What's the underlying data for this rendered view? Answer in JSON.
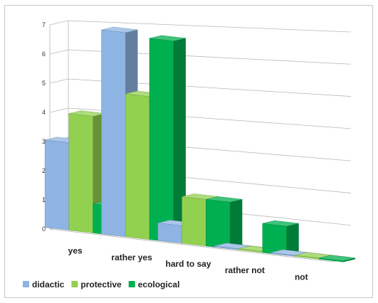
{
  "chart_data": {
    "type": "bar",
    "style": "3d-clustered",
    "categories": [
      "yes",
      "rather yes",
      "hard to say",
      "rather not",
      "not"
    ],
    "series": [
      {
        "name": "didactic",
        "values": [
          3,
          7,
          0.6,
          0,
          0
        ],
        "color": "#8eb4e3"
      },
      {
        "name": "protective",
        "values": [
          4,
          4.9,
          1.6,
          0,
          0
        ],
        "color": "#92d050"
      },
      {
        "name": "ecological",
        "values": [
          1,
          6.9,
          1.6,
          1,
          0
        ],
        "color": "#00b050"
      }
    ],
    "yticks": [
      0,
      1,
      2,
      3,
      4,
      5,
      6,
      7
    ],
    "ylim": [
      0,
      7
    ],
    "grid": true,
    "legend_position": "bottom-left"
  }
}
